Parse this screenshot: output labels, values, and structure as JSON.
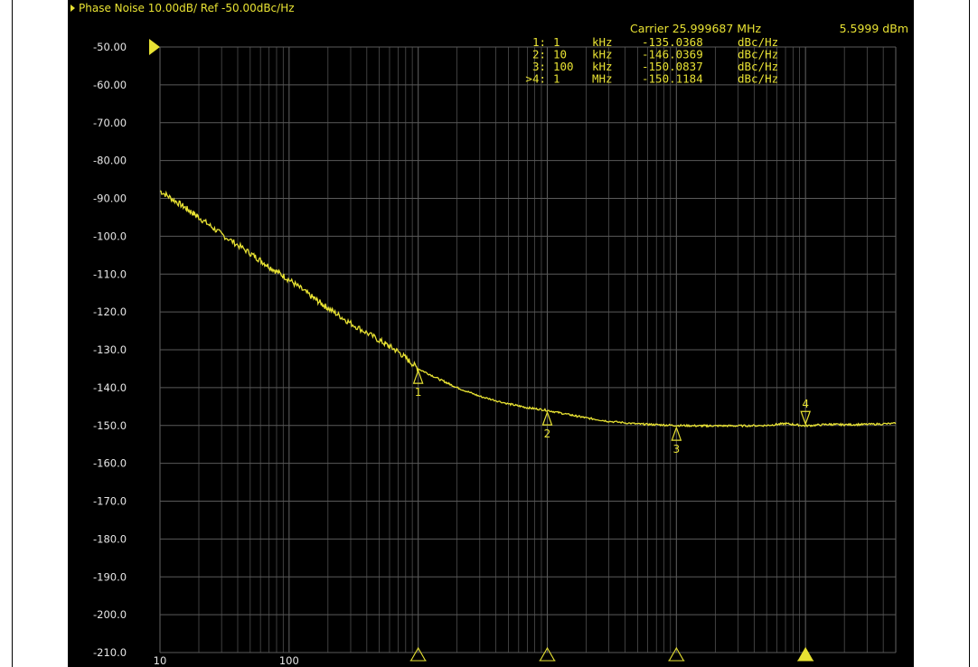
{
  "header": {
    "title": "Phase Noise 10.00dB/ Ref -50.00dBc/Hz"
  },
  "marker_table": {
    "carrier_label": "Carrier 25.999687 MHz",
    "carrier_power": "5.5999 dBm",
    "rows": [
      {
        "id": "1:",
        "freq": "1",
        "unit": "kHz",
        "value": "-135.0368",
        "vunit": "dBc/Hz"
      },
      {
        "id": "2:",
        "freq": "10",
        "unit": "kHz",
        "value": "-146.0369",
        "vunit": "dBc/Hz"
      },
      {
        "id": "3:",
        "freq": "100",
        "unit": "kHz",
        "value": "-150.0837",
        "vunit": "dBc/Hz"
      },
      {
        "id": ">4:",
        "freq": "1",
        "unit": "MHz",
        "value": "-150.1184",
        "vunit": "dBc/Hz"
      }
    ]
  },
  "colors": {
    "background": "#000000",
    "grid": "#5a5a5a",
    "trace": "#e8e233",
    "text": "#e8e233",
    "axis_text": "#e6e6e6"
  },
  "chart_data": {
    "type": "line",
    "xscale": "log",
    "xlim": [
      10,
      5000000
    ],
    "ylim": [
      -210,
      -50
    ],
    "yticks": [
      -50,
      -60,
      -70,
      -80,
      -90,
      -100,
      -110,
      -120,
      -130,
      -140,
      -150,
      -160,
      -170,
      -180,
      -190,
      -200,
      -210
    ],
    "ytick_labels": [
      "-50.00",
      "-60.00",
      "-70.00",
      "-80.00",
      "-90.00",
      "-100.0",
      "-110.0",
      "-120.0",
      "-130.0",
      "-140.0",
      "-150.0",
      "-160.0",
      "-170.0",
      "-180.0",
      "-190.0",
      "-200.0",
      "-210.0"
    ],
    "xtick_labels": [
      {
        "x": 10,
        "label": "10"
      },
      {
        "x": 100,
        "label": "100"
      }
    ],
    "reference_level": -50,
    "grid": true,
    "series": [
      {
        "x": [
          10,
          15,
          20,
          30,
          50,
          70,
          100,
          150,
          200,
          300,
          500,
          700,
          1000,
          1500,
          2000,
          3000,
          5000,
          7000,
          10000,
          15000,
          20000,
          30000,
          50000,
          70000,
          100000,
          150000,
          200000,
          300000,
          500000,
          700000,
          1000000,
          1500000,
          2000000,
          3000000,
          5000000
        ],
        "y": [
          -88,
          -92,
          -95,
          -99.5,
          -104.5,
          -108,
          -111.5,
          -116,
          -119,
          -123,
          -127.5,
          -130.5,
          -135,
          -138,
          -140,
          -142.3,
          -144.3,
          -145.3,
          -146,
          -147.2,
          -148,
          -148.9,
          -149.6,
          -149.8,
          -150,
          -150.1,
          -150.1,
          -150.1,
          -150,
          -149.5,
          -150.1,
          -149.7,
          -149.8,
          -149.7,
          -149.5
        ]
      }
    ],
    "markers": [
      {
        "label": "1",
        "x": 1000,
        "y": -135.0368,
        "direction": "up"
      },
      {
        "label": "2",
        "x": 10000,
        "y": -146.0369,
        "direction": "up"
      },
      {
        "label": "3",
        "x": 100000,
        "y": -150.0837,
        "direction": "up"
      },
      {
        "label": "4",
        "x": 1000000,
        "y": -150.1184,
        "direction": "down",
        "active": true
      }
    ]
  }
}
